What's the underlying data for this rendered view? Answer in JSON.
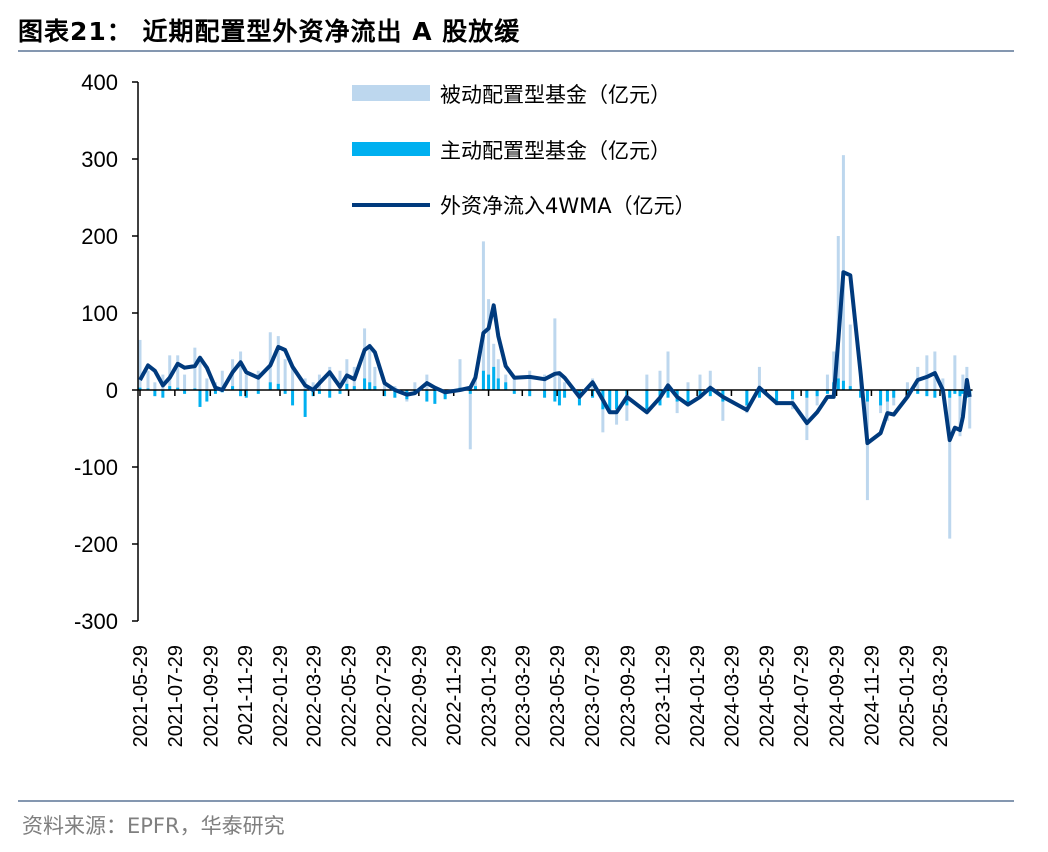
{
  "title": "图表21：  近期配置型外资净流出 A 股放缓",
  "source": "资料来源：EPFR，华泰研究",
  "chart_data": {
    "type": "bar+line",
    "title": "图表21：  近期配置型外资净流出 A 股放缓",
    "ylim": [
      -300,
      400
    ],
    "yticks": [
      400,
      300,
      200,
      100,
      0,
      -100,
      -200,
      -300
    ],
    "xlim": [
      "2021-05-29",
      "2025-05-25"
    ],
    "xticks": [
      "2021-05-29",
      "2021-07-29",
      "2021-09-29",
      "2021-11-29",
      "2022-01-29",
      "2022-03-29",
      "2022-05-29",
      "2022-07-29",
      "2022-09-29",
      "2022-11-29",
      "2023-01-29",
      "2023-03-29",
      "2023-05-29",
      "2023-07-29",
      "2023-09-29",
      "2023-11-29",
      "2024-01-29",
      "2024-03-29",
      "2024-05-29",
      "2024-07-29",
      "2024-09-29",
      "2024-11-29",
      "2025-01-29",
      "2025-03-29"
    ],
    "grid": false,
    "legend_placement": "top-center",
    "colors": {
      "passive": "#bdd7ee",
      "active": "#00b0f0",
      "line": "#003a7d",
      "rule": "#8497b0"
    },
    "series": [
      {
        "name": "被动配置型基金（亿元）",
        "type": "bar"
      },
      {
        "name": "主动配置型基金（亿元）",
        "type": "bar"
      },
      {
        "name": "外资净流入4WMA（亿元）",
        "type": "line"
      }
    ],
    "columns": [
      "date",
      "外资净流入4WMA",
      "被动配置型基金",
      "主动配置型基金"
    ],
    "points": [
      [
        "2021-05-29",
        13,
        65,
        3
      ],
      [
        "2021-06-12",
        32,
        25,
        2
      ],
      [
        "2021-06-24",
        25,
        10,
        -8
      ],
      [
        "2021-07-08",
        6,
        20,
        -10
      ],
      [
        "2021-07-20",
        16,
        45,
        5
      ],
      [
        "2021-08-03",
        34,
        45,
        3
      ],
      [
        "2021-08-15",
        29,
        20,
        -5
      ],
      [
        "2021-09-02",
        31,
        55,
        2
      ],
      [
        "2021-09-11",
        42,
        40,
        -22
      ],
      [
        "2021-09-23",
        29,
        15,
        -15
      ],
      [
        "2021-10-08",
        3,
        10,
        -5
      ],
      [
        "2021-10-20",
        0,
        25,
        -3
      ],
      [
        "2021-11-07",
        23,
        40,
        5
      ],
      [
        "2021-11-21",
        36,
        50,
        -8
      ],
      [
        "2021-12-01",
        23,
        20,
        -10
      ],
      [
        "2021-12-22",
        16,
        25,
        -5
      ],
      [
        "2022-01-12",
        32,
        75,
        10
      ],
      [
        "2022-01-26",
        56,
        70,
        8
      ],
      [
        "2022-02-07",
        52,
        40,
        -5
      ],
      [
        "2022-02-20",
        30,
        30,
        -20
      ],
      [
        "2022-03-14",
        6,
        15,
        -35
      ],
      [
        "2022-03-28",
        0,
        10,
        -8
      ],
      [
        "2022-04-08",
        9,
        20,
        -5
      ],
      [
        "2022-04-26",
        23,
        30,
        -10
      ],
      [
        "2022-05-14",
        4,
        25,
        -5
      ],
      [
        "2022-05-26",
        19,
        40,
        8
      ],
      [
        "2022-06-08",
        14,
        30,
        5
      ],
      [
        "2022-06-26",
        52,
        80,
        15
      ],
      [
        "2022-07-05",
        57,
        60,
        10
      ],
      [
        "2022-07-14",
        49,
        30,
        5
      ],
      [
        "2022-07-31",
        9,
        10,
        -8
      ],
      [
        "2022-08-18",
        0,
        5,
        -10
      ],
      [
        "2022-09-08",
        -6,
        -15,
        -12
      ],
      [
        "2022-09-22",
        -4,
        10,
        -5
      ],
      [
        "2022-10-13",
        9,
        20,
        -15
      ],
      [
        "2022-10-27",
        3,
        5,
        -18
      ],
      [
        "2022-11-14",
        -3,
        -10,
        -12
      ],
      [
        "2022-12-10",
        0,
        40,
        3
      ],
      [
        "2022-12-28",
        3,
        -77,
        -5
      ],
      [
        "2023-01-06",
        16,
        20,
        5
      ],
      [
        "2023-01-20",
        74,
        193,
        25
      ],
      [
        "2023-01-29",
        80,
        118,
        20
      ],
      [
        "2023-02-07",
        110,
        60,
        30
      ],
      [
        "2023-02-15",
        70,
        40,
        15
      ],
      [
        "2023-02-28",
        31,
        20,
        10
      ],
      [
        "2023-03-15",
        16,
        15,
        -5
      ],
      [
        "2023-04-11",
        17,
        25,
        -8
      ],
      [
        "2023-05-07",
        14,
        20,
        -10
      ],
      [
        "2023-05-25",
        21,
        93,
        -15
      ],
      [
        "2023-06-02",
        22,
        20,
        -20
      ],
      [
        "2023-06-11",
        16,
        10,
        -10
      ],
      [
        "2023-07-07",
        -9,
        -15,
        -20
      ],
      [
        "2023-07-30",
        10,
        15,
        -10
      ],
      [
        "2023-08-17",
        -13,
        -55,
        -25
      ],
      [
        "2023-08-29",
        -29,
        -30,
        -30
      ],
      [
        "2023-09-10",
        -29,
        -45,
        -25
      ],
      [
        "2023-09-28",
        -9,
        -40,
        -20
      ],
      [
        "2023-11-02",
        -29,
        20,
        -25
      ],
      [
        "2023-11-25",
        -10,
        25,
        -20
      ],
      [
        "2023-12-09",
        6,
        50,
        -10
      ],
      [
        "2023-12-25",
        -9,
        -30,
        -15
      ],
      [
        "2024-01-13",
        -19,
        10,
        -20
      ],
      [
        "2024-02-03",
        -9,
        20,
        -10
      ],
      [
        "2024-02-21",
        3,
        25,
        -8
      ],
      [
        "2024-03-14",
        -9,
        -40,
        -15
      ],
      [
        "2024-04-25",
        -26,
        -30,
        -20
      ],
      [
        "2024-05-17",
        3,
        30,
        -10
      ],
      [
        "2024-06-16",
        -17,
        -20,
        -15
      ],
      [
        "2024-07-14",
        -17,
        -25,
        -12
      ],
      [
        "2024-08-08",
        -43,
        -65,
        -10
      ],
      [
        "2024-08-26",
        -29,
        -20,
        -8
      ],
      [
        "2024-09-13",
        -9,
        20,
        -5
      ],
      [
        "2024-09-24",
        -9,
        50,
        10
      ],
      [
        "2024-10-02",
        65,
        200,
        15
      ],
      [
        "2024-10-11",
        153,
        305,
        12
      ],
      [
        "2024-10-23",
        149,
        85,
        5
      ],
      [
        "2024-11-10",
        22,
        30,
        -10
      ],
      [
        "2024-11-22",
        -69,
        -143,
        -15
      ],
      [
        "2024-12-15",
        -56,
        -30,
        -20
      ],
      [
        "2024-12-27",
        -30,
        -40,
        -15
      ],
      [
        "2025-01-07",
        -32,
        -20,
        -10
      ],
      [
        "2025-01-31",
        -9,
        10,
        -8
      ],
      [
        "2025-02-18",
        13,
        30,
        -5
      ],
      [
        "2025-03-06",
        17,
        45,
        -8
      ],
      [
        "2025-03-20",
        22,
        50,
        -10
      ],
      [
        "2025-04-03",
        0,
        15,
        -5
      ],
      [
        "2025-04-15",
        -65,
        -193,
        -10
      ],
      [
        "2025-04-24",
        -49,
        45,
        -5
      ],
      [
        "2025-05-03",
        -52,
        -60,
        -8
      ],
      [
        "2025-05-08",
        -35,
        20,
        -5
      ],
      [
        "2025-05-15",
        13,
        30,
        -10
      ],
      [
        "2025-05-20",
        -9,
        -50,
        -8
      ]
    ]
  }
}
